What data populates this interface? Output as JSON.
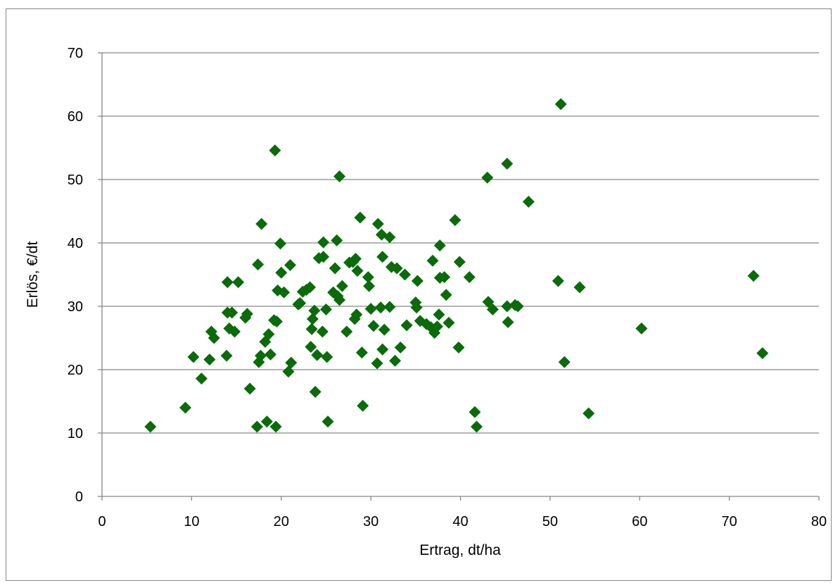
{
  "chart_data": {
    "type": "scatter",
    "title": "",
    "xlabel": "Ertrag, dt/ha",
    "ylabel": "Erlös, €/dt",
    "xlim": [
      0,
      80
    ],
    "ylim": [
      0,
      70
    ],
    "xticks": [
      0,
      10,
      20,
      30,
      40,
      50,
      60,
      70,
      80
    ],
    "yticks": [
      0,
      10,
      20,
      30,
      40,
      50,
      60,
      70
    ],
    "grid": "horizontal",
    "legend": "none",
    "marker": "diamond",
    "marker_color": "#0a6b0a",
    "points": [
      [
        5.4,
        11
      ],
      [
        9.3,
        14
      ],
      [
        10.2,
        22
      ],
      [
        11.1,
        18.6
      ],
      [
        12.0,
        21.6
      ],
      [
        12.2,
        26
      ],
      [
        12.5,
        25
      ],
      [
        13.9,
        22.2
      ],
      [
        14.0,
        33.8
      ],
      [
        14.0,
        29
      ],
      [
        14.2,
        26.5
      ],
      [
        14.5,
        29
      ],
      [
        14.8,
        26
      ],
      [
        15.2,
        33.8
      ],
      [
        16.0,
        28.2
      ],
      [
        16.2,
        28.8
      ],
      [
        16.5,
        17
      ],
      [
        17.3,
        11
      ],
      [
        17.4,
        36.6
      ],
      [
        17.5,
        21.2
      ],
      [
        17.7,
        22.2
      ],
      [
        17.8,
        43
      ],
      [
        18.2,
        24.4
      ],
      [
        18.4,
        11.8
      ],
      [
        18.6,
        25.6
      ],
      [
        18.8,
        22.4
      ],
      [
        19.2,
        27.8
      ],
      [
        19.3,
        54.6
      ],
      [
        19.4,
        11
      ],
      [
        19.5,
        27.6
      ],
      [
        19.6,
        32.5
      ],
      [
        19.9,
        39.9
      ],
      [
        20.0,
        35.3
      ],
      [
        20.3,
        32.2
      ],
      [
        20.8,
        19.7
      ],
      [
        21.0,
        36.5
      ],
      [
        21.1,
        21.1
      ],
      [
        21.9,
        30.3
      ],
      [
        22.1,
        30.5
      ],
      [
        22.4,
        32.3
      ],
      [
        22.8,
        32.6
      ],
      [
        23.2,
        33
      ],
      [
        23.3,
        23.6
      ],
      [
        23.4,
        26.4
      ],
      [
        23.5,
        28
      ],
      [
        23.7,
        29.3
      ],
      [
        23.8,
        16.5
      ],
      [
        24.0,
        22.3
      ],
      [
        24.2,
        37.6
      ],
      [
        24.6,
        26
      ],
      [
        24.7,
        40.1
      ],
      [
        24.7,
        37.8
      ],
      [
        25.0,
        29.5
      ],
      [
        25.1,
        22
      ],
      [
        25.2,
        11.8
      ],
      [
        25.8,
        32.2
      ],
      [
        26.0,
        36
      ],
      [
        26.2,
        40.4
      ],
      [
        26.3,
        31.6
      ],
      [
        26.5,
        50.5
      ],
      [
        26.5,
        31
      ],
      [
        26.8,
        33.2
      ],
      [
        27.3,
        26
      ],
      [
        27.6,
        36.9
      ],
      [
        28.0,
        37
      ],
      [
        28.2,
        28
      ],
      [
        28.3,
        37.5
      ],
      [
        28.4,
        28.7
      ],
      [
        28.5,
        35.6
      ],
      [
        28.8,
        44
      ],
      [
        29.0,
        22.7
      ],
      [
        29.1,
        14.3
      ],
      [
        29.7,
        34.6
      ],
      [
        29.8,
        33.2
      ],
      [
        30.0,
        29.6
      ],
      [
        30.3,
        26.9
      ],
      [
        30.7,
        21
      ],
      [
        30.8,
        43
      ],
      [
        31.1,
        29.8
      ],
      [
        31.2,
        41.3
      ],
      [
        31.3,
        37.8
      ],
      [
        31.3,
        23.2
      ],
      [
        31.5,
        26.3
      ],
      [
        32.1,
        29.9
      ],
      [
        32.1,
        40.9
      ],
      [
        32.3,
        36.2
      ],
      [
        32.7,
        21.4
      ],
      [
        32.9,
        36
      ],
      [
        33.3,
        23.5
      ],
      [
        33.8,
        35
      ],
      [
        34.0,
        27
      ],
      [
        35.0,
        30.6
      ],
      [
        35.1,
        29.8
      ],
      [
        35.2,
        34
      ],
      [
        35.5,
        27.7
      ],
      [
        36.2,
        27.2
      ],
      [
        36.7,
        26.7
      ],
      [
        36.9,
        37.2
      ],
      [
        37.1,
        25.8
      ],
      [
        37.4,
        26.8
      ],
      [
        37.6,
        28.7
      ],
      [
        37.7,
        34.5
      ],
      [
        37.7,
        39.6
      ],
      [
        38.2,
        34.6
      ],
      [
        38.4,
        31.8
      ],
      [
        38.7,
        27.4
      ],
      [
        39.4,
        43.6
      ],
      [
        39.8,
        23.5
      ],
      [
        39.9,
        37
      ],
      [
        41.0,
        34.6
      ],
      [
        41.6,
        13.3
      ],
      [
        41.8,
        11
      ],
      [
        43.0,
        50.3
      ],
      [
        43.1,
        30.7
      ],
      [
        43.6,
        29.5
      ],
      [
        45.2,
        52.5
      ],
      [
        45.2,
        30
      ],
      [
        45.3,
        27.5
      ],
      [
        46.1,
        30.2
      ],
      [
        46.4,
        30
      ],
      [
        47.6,
        46.5
      ],
      [
        50.9,
        34
      ],
      [
        51.2,
        61.9
      ],
      [
        51.6,
        21.2
      ],
      [
        53.3,
        33
      ],
      [
        54.3,
        13.1
      ],
      [
        60.2,
        26.5
      ],
      [
        72.7,
        34.8
      ],
      [
        73.7,
        22.6
      ]
    ]
  }
}
